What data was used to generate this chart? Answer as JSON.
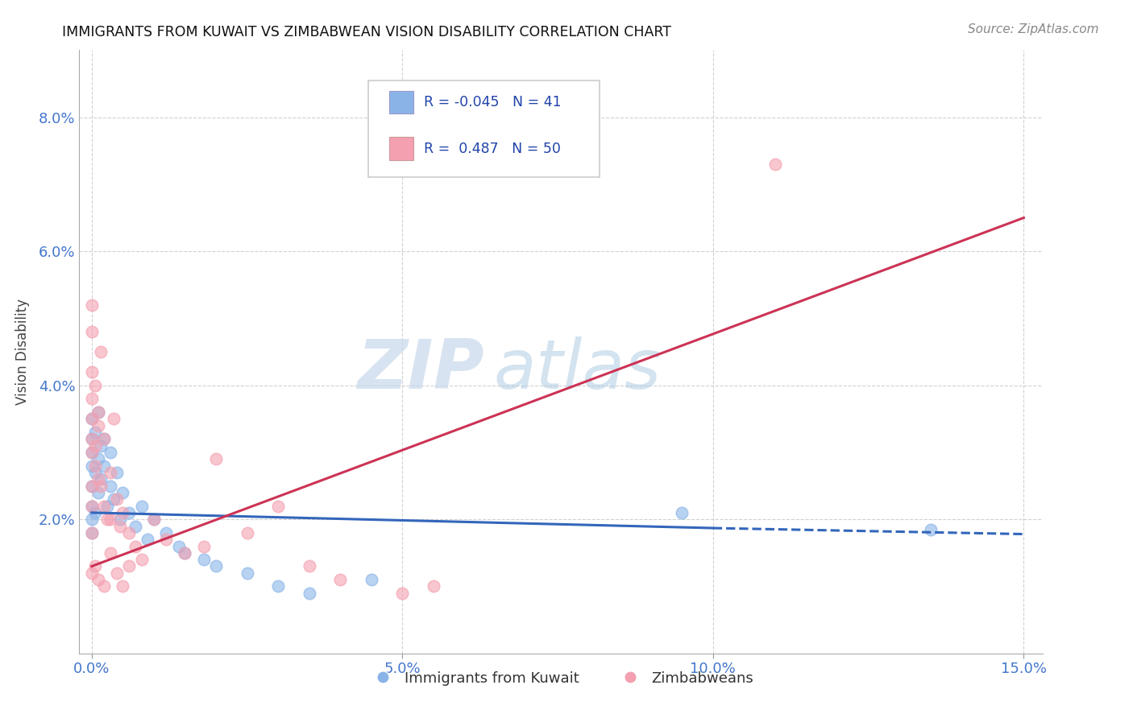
{
  "title": "IMMIGRANTS FROM KUWAIT VS ZIMBABWEAN VISION DISABILITY CORRELATION CHART",
  "source": "Source: ZipAtlas.com",
  "xlabel_blue": "Immigrants from Kuwait",
  "xlabel_pink": "Zimbabweans",
  "ylabel": "Vision Disability",
  "xlim": [
    0.0,
    15.0
  ],
  "ylim": [
    0.0,
    9.0
  ],
  "xticks": [
    0.0,
    5.0,
    10.0,
    15.0
  ],
  "yticks": [
    2.0,
    4.0,
    6.0,
    8.0
  ],
  "r_blue": -0.045,
  "n_blue": 41,
  "r_pink": 0.487,
  "n_pink": 50,
  "color_blue": "#8AB4E8",
  "color_pink": "#F4A0B0",
  "line_blue": "#3366BB",
  "line_pink": "#CC3355",
  "watermark_zip": "ZIP",
  "watermark_atlas": "atlas",
  "blue_scatter_x": [
    0.0,
    0.0,
    0.0,
    0.0,
    0.0,
    0.0,
    0.0,
    0.0,
    0.05,
    0.05,
    0.05,
    0.1,
    0.1,
    0.1,
    0.15,
    0.15,
    0.2,
    0.2,
    0.25,
    0.3,
    0.3,
    0.35,
    0.4,
    0.45,
    0.5,
    0.6,
    0.7,
    0.8,
    0.9,
    1.0,
    1.2,
    1.4,
    1.5,
    1.8,
    2.0,
    2.5,
    3.0,
    3.5,
    4.5,
    9.5,
    13.5
  ],
  "blue_scatter_y": [
    2.2,
    2.5,
    2.8,
    3.0,
    3.2,
    3.5,
    1.8,
    2.0,
    2.1,
    2.7,
    3.3,
    2.4,
    3.6,
    2.9,
    3.1,
    2.6,
    2.8,
    3.2,
    2.2,
    3.0,
    2.5,
    2.3,
    2.7,
    2.0,
    2.4,
    2.1,
    1.9,
    2.2,
    1.7,
    2.0,
    1.8,
    1.6,
    1.5,
    1.4,
    1.3,
    1.2,
    1.0,
    0.9,
    1.1,
    2.1,
    1.85
  ],
  "pink_scatter_x": [
    0.0,
    0.0,
    0.0,
    0.0,
    0.0,
    0.0,
    0.0,
    0.0,
    0.0,
    0.0,
    0.05,
    0.05,
    0.05,
    0.1,
    0.1,
    0.1,
    0.15,
    0.15,
    0.2,
    0.2,
    0.25,
    0.3,
    0.3,
    0.35,
    0.4,
    0.45,
    0.5,
    0.6,
    0.7,
    0.8,
    1.0,
    1.2,
    1.5,
    1.8,
    2.0,
    2.5,
    3.0,
    3.5,
    4.0,
    5.0,
    5.5,
    0.0,
    0.05,
    0.1,
    0.2,
    0.3,
    0.4,
    0.5,
    0.6,
    11.0
  ],
  "pink_scatter_y": [
    4.8,
    4.2,
    3.8,
    3.5,
    5.2,
    3.2,
    3.0,
    2.5,
    2.2,
    1.8,
    3.1,
    2.8,
    4.0,
    3.6,
    2.6,
    3.4,
    4.5,
    2.5,
    3.2,
    2.2,
    2.0,
    2.7,
    2.0,
    3.5,
    2.3,
    1.9,
    2.1,
    1.8,
    1.6,
    1.4,
    2.0,
    1.7,
    1.5,
    1.6,
    2.9,
    1.8,
    2.2,
    1.3,
    1.1,
    0.9,
    1.0,
    1.2,
    1.3,
    1.1,
    1.0,
    1.5,
    1.2,
    1.0,
    1.3,
    7.3
  ]
}
